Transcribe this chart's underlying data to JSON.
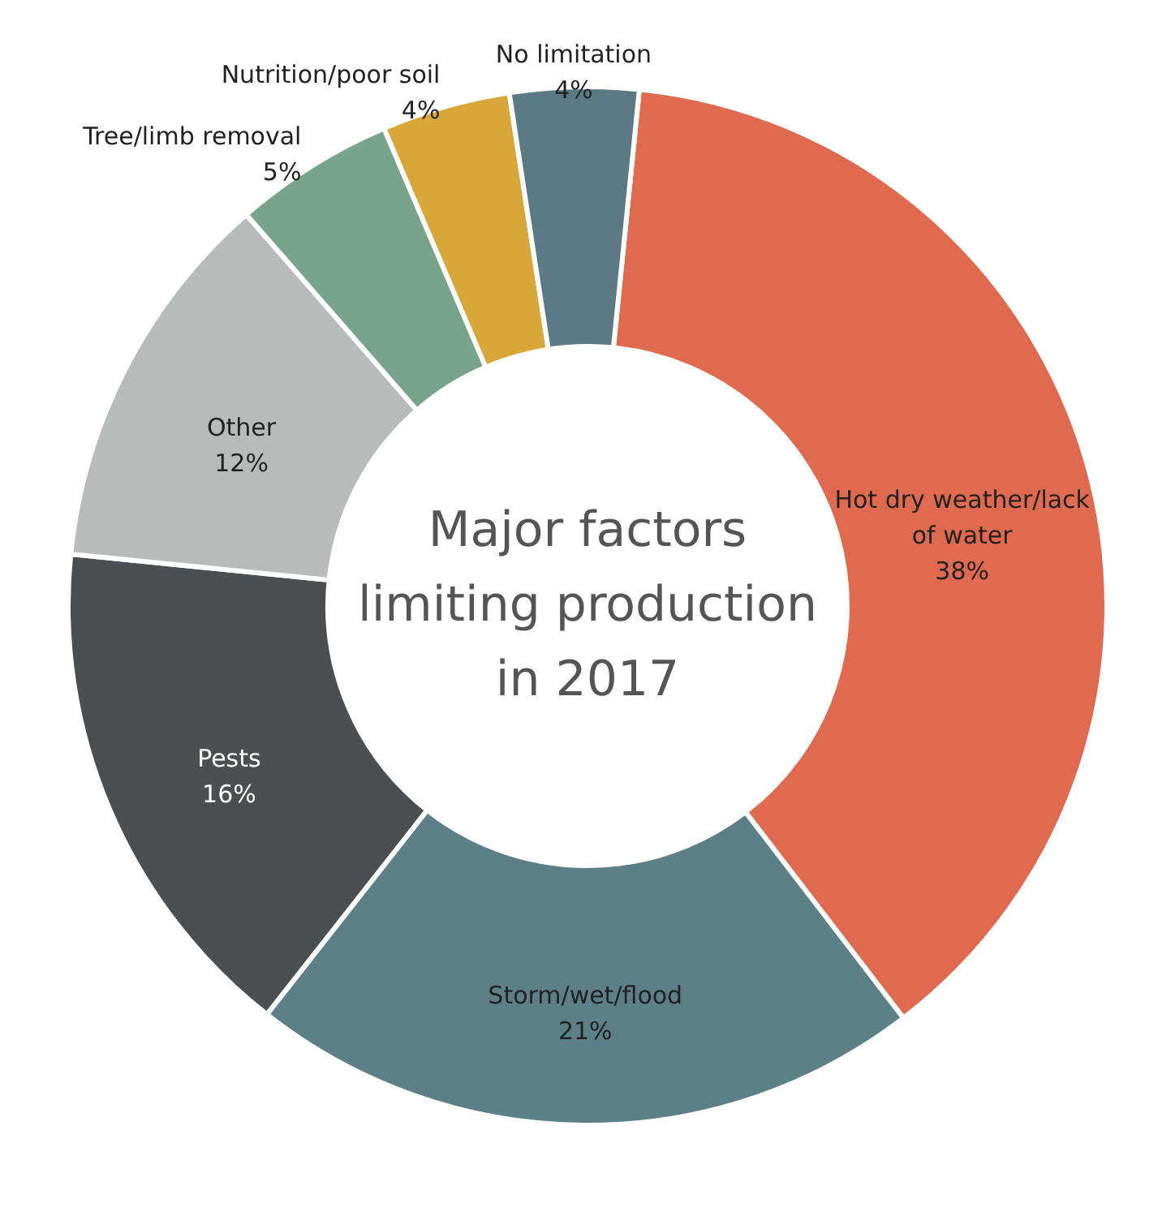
{
  "chart_data": {
    "type": "donut",
    "title": "Major factors limiting production in 2017",
    "categories": [
      "Hot dry weather/lack of water",
      "Storm/wet/flood",
      "Pests",
      "Other",
      "Tree/limb removal",
      "Nutrition/poor soil",
      "No limitation"
    ],
    "values": [
      38,
      21,
      16,
      12,
      5,
      4,
      4
    ],
    "value_labels": [
      "38%",
      "21%",
      "16%",
      "12%",
      "5%",
      "4%",
      "4%"
    ],
    "colors": [
      "#e06a50",
      "#5d7f88",
      "#4b4f52",
      "#b9bbbb",
      "#78a48c",
      "#d9a63a",
      "#5b7a85"
    ],
    "legend": false
  }
}
